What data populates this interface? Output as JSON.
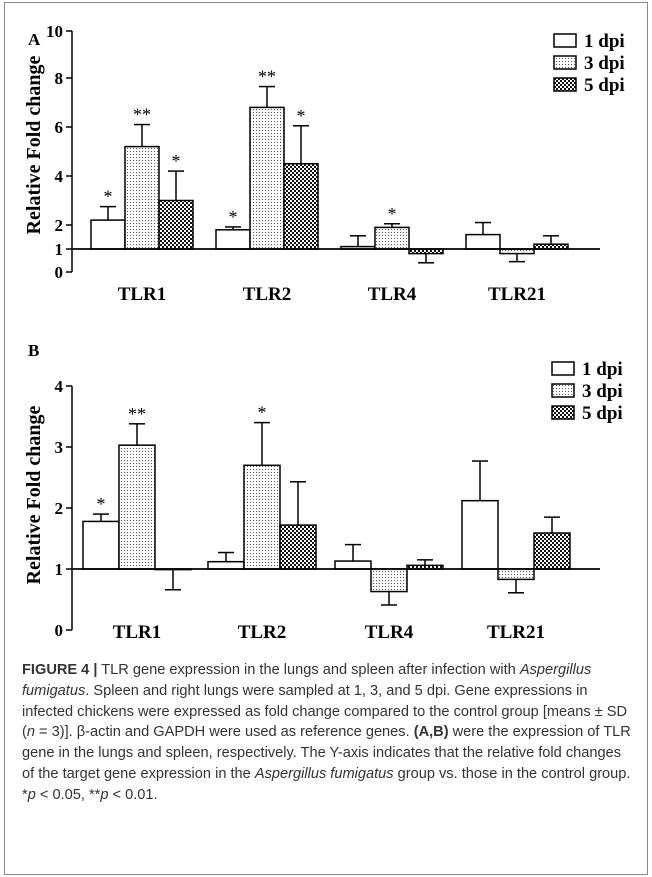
{
  "panel_a_label": "A",
  "panel_b_label": "B",
  "legend": [
    "1 dpi",
    "3 dpi",
    "5 dpi"
  ],
  "colors": {
    "axis": "#000000",
    "bar_edge": "#000000",
    "caption_text": "#333333"
  },
  "chart_data": [
    {
      "type": "bar",
      "panel": "A",
      "categories": [
        "TLR1",
        "TLR2",
        "TLR4",
        "TLR21"
      ],
      "ylabel": "Relative Fold change",
      "xlabel": "",
      "ylim": [
        0,
        10
      ],
      "yticks": [
        0,
        1,
        2,
        4,
        6,
        8,
        10
      ],
      "ytick_labels": [
        "0",
        "1",
        "2",
        "4",
        "6",
        "8",
        "10"
      ],
      "baseline": 1,
      "legend_position": "top-right",
      "series": [
        {
          "name": "1 dpi",
          "pattern": "white",
          "values": [
            2.2,
            1.8,
            1.1,
            1.6
          ],
          "errors": [
            0.55,
            0.12,
            0.45,
            0.5
          ],
          "labels": [
            "*",
            "*",
            "",
            ""
          ]
        },
        {
          "name": "3 dpi",
          "pattern": "dots",
          "values": [
            5.2,
            6.8,
            1.9,
            0.8
          ],
          "errors": [
            0.9,
            0.85,
            0.15,
            0.35
          ],
          "labels": [
            "**",
            "**",
            "*",
            ""
          ]
        },
        {
          "name": "5 dpi",
          "pattern": "checker",
          "values": [
            3.0,
            4.5,
            0.8,
            1.2
          ],
          "errors": [
            1.2,
            1.55,
            0.4,
            0.35
          ],
          "labels": [
            "*",
            "*",
            "",
            ""
          ]
        }
      ]
    },
    {
      "type": "bar",
      "panel": "B",
      "categories": [
        "TLR1",
        "TLR2",
        "TLR4",
        "TLR21"
      ],
      "ylabel": "Relative Fold change",
      "xlabel": "",
      "ylim": [
        0,
        4
      ],
      "yticks": [
        0,
        1,
        2,
        3,
        4
      ],
      "ytick_labels": [
        "0",
        "1",
        "2",
        "3",
        "4"
      ],
      "baseline": 1,
      "legend_position": "top-right",
      "series": [
        {
          "name": "1 dpi",
          "pattern": "white",
          "values": [
            1.78,
            1.12,
            1.13,
            2.12
          ],
          "errors": [
            0.12,
            0.15,
            0.27,
            0.65
          ],
          "labels": [
            "*",
            "",
            "",
            ""
          ]
        },
        {
          "name": "3 dpi",
          "pattern": "dots",
          "values": [
            3.03,
            2.7,
            0.63,
            0.83
          ],
          "errors": [
            0.35,
            0.7,
            0.22,
            0.22
          ],
          "labels": [
            "**",
            "*",
            "",
            ""
          ]
        },
        {
          "name": "5 dpi",
          "pattern": "checker",
          "values": [
            0.99,
            1.72,
            1.06,
            1.59
          ],
          "errors": [
            0.33,
            0.71,
            0.09,
            0.26
          ],
          "labels": [
            "",
            "",
            "",
            ""
          ]
        }
      ]
    }
  ],
  "caption": {
    "figure_label": "FIGURE 4 |",
    "part1": " TLR gene expression in the lungs and spleen after infection with ",
    "species1": "Aspergillus fumigatus",
    "part2": ". Spleen and right lungs were sampled at 1, 3, and 5 dpi. Gene expressions in infected chickens were expressed as fold change compared to the control group [means ± SD (",
    "n_symbol": "n",
    "part3": " = 3)]. β-actin and GAPDH were used as reference genes. ",
    "panels_ref": "(A,B)",
    "part4": " were the expression of TLR gene in the lungs and spleen, respectively. The Y-axis indicates that the relative fold changes of the target gene expression in the ",
    "species2": "Aspergillus fumigatus",
    "part5": " group vs. those in the control group. *",
    "p1": "p",
    "part6": " < 0.05, **",
    "p2": "p",
    "part7": " < 0.01."
  }
}
